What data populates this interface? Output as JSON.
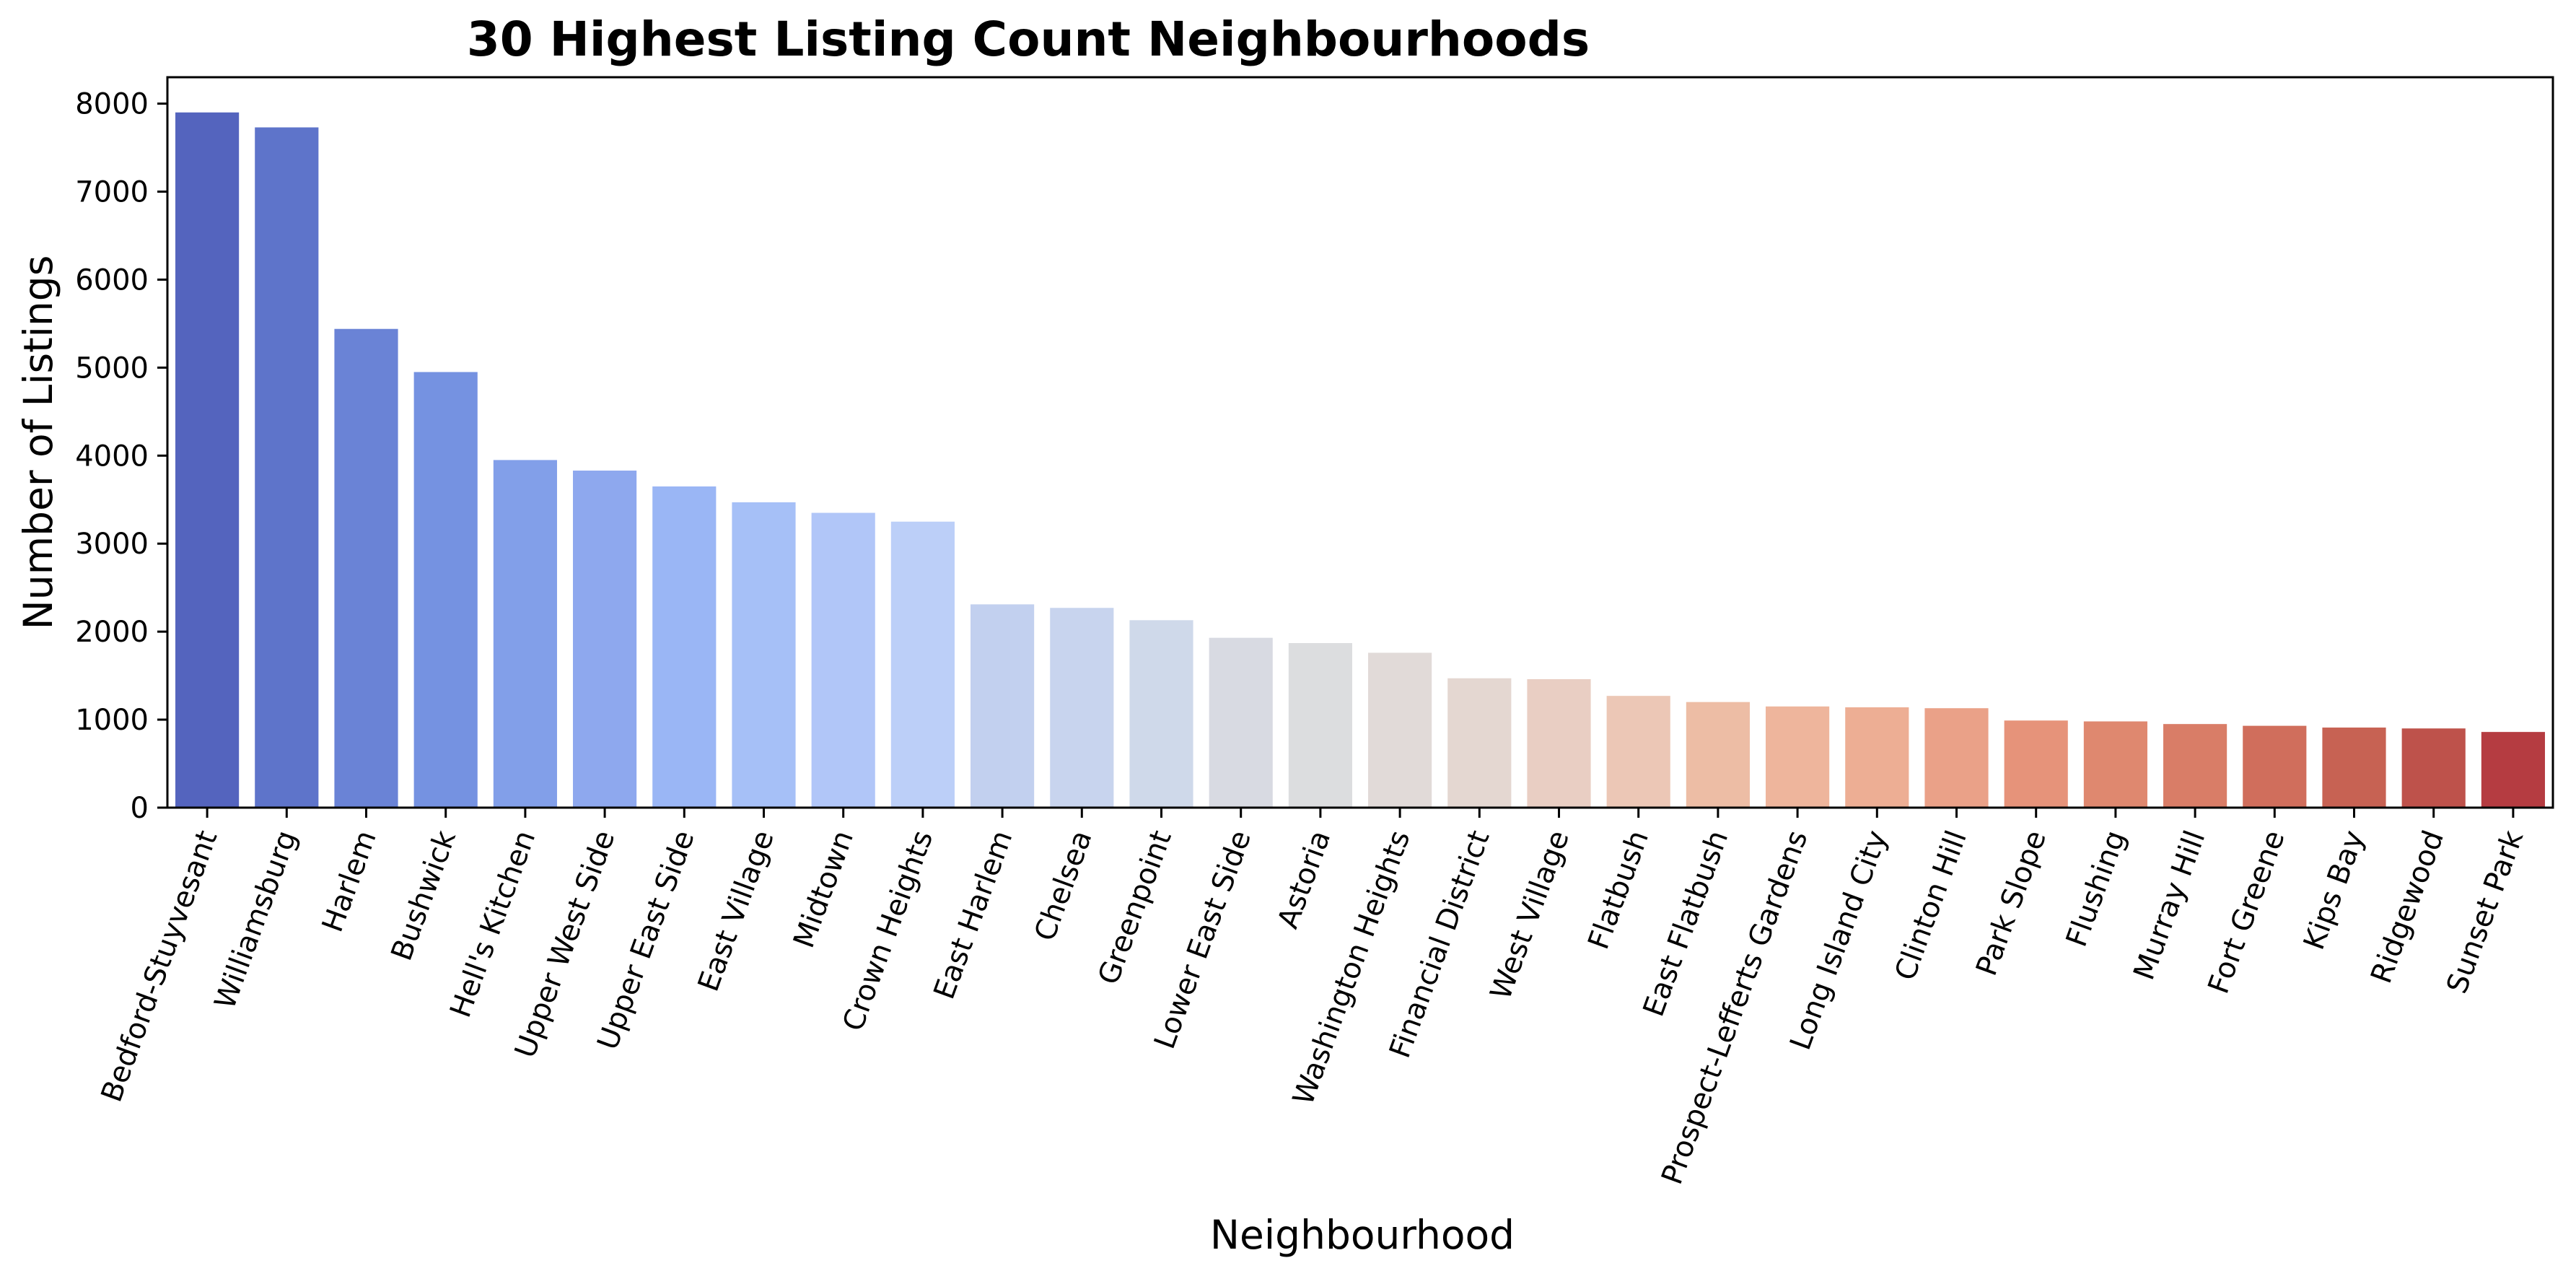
{
  "chart_data": {
    "type": "bar",
    "title": "30 Highest Listing Count Neighbourhoods",
    "xlabel": "Neighbourhood",
    "ylabel": "Number of Listings",
    "ylim": [
      0,
      8300
    ],
    "yticks": [
      0,
      1000,
      2000,
      3000,
      4000,
      5000,
      6000,
      7000,
      8000
    ],
    "grid": false,
    "legend": "none",
    "palette": "coolwarm",
    "categories": [
      "Bedford-Stuyvesant",
      "Williamsburg",
      "Harlem",
      "Bushwick",
      "Hell's Kitchen",
      "Upper West Side",
      "Upper East Side",
      "East Village",
      "Midtown",
      "Crown Heights",
      "East Harlem",
      "Chelsea",
      "Greenpoint",
      "Lower East Side",
      "Astoria",
      "Washington Heights",
      "Financial District",
      "West Village",
      "Flatbush",
      "East Flatbush",
      "Prospect-Lefferts Gardens",
      "Long Island City",
      "Clinton Hill",
      "Park Slope",
      "Flushing",
      "Murray Hill",
      "Fort Greene",
      "Kips Bay",
      "Ridgewood",
      "Sunset Park"
    ],
    "values": [
      7900,
      7730,
      5440,
      4950,
      3950,
      3830,
      3650,
      3470,
      3350,
      3250,
      2310,
      2270,
      2130,
      1930,
      1870,
      1760,
      1470,
      1460,
      1270,
      1200,
      1150,
      1140,
      1130,
      990,
      980,
      950,
      930,
      910,
      900,
      860
    ],
    "colors": [
      "#5464be",
      "#5e74ca",
      "#6a83d6",
      "#7592e1",
      "#829fe9",
      "#8ea8ee",
      "#9ab6f5",
      "#a6c0f7",
      "#b1c6f8",
      "#bccff8",
      "#c2d0ef",
      "#c8d4ee",
      "#cfd9ea",
      "#d8dae2",
      "#dcdddf",
      "#e1dad8",
      "#e4d7d1",
      "#e9cec3",
      "#ecc7b6",
      "#edbda5",
      "#eeb59c",
      "#edae94",
      "#eaa188",
      "#e6937a",
      "#df886f",
      "#d97d67",
      "#d06e5c",
      "#c76253",
      "#be524b",
      "#b53c41"
    ]
  }
}
